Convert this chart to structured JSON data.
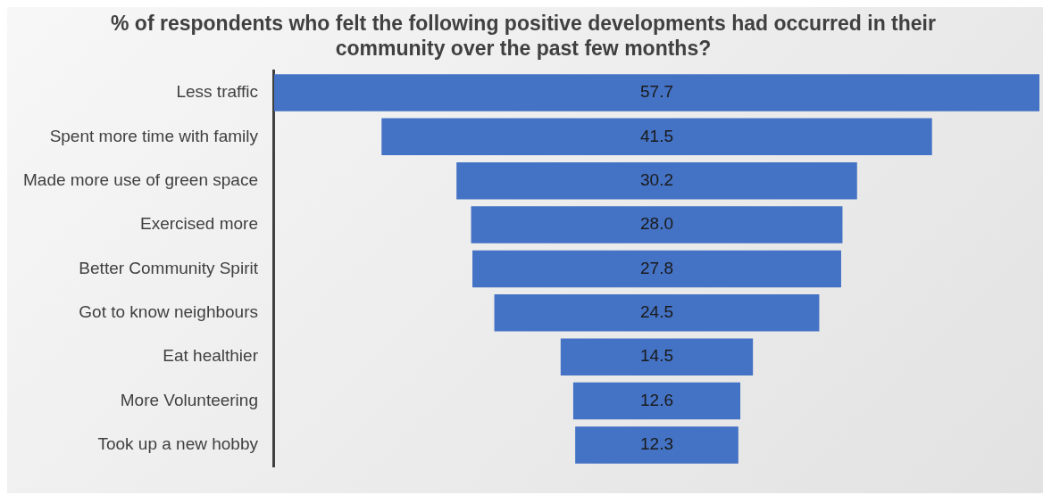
{
  "chart_data": {
    "type": "other",
    "title": "% of respondents who felt the following positive developments had occurred in their community over the past few months?",
    "categories": [
      "Less traffic",
      "Spent more time with family",
      "Made more use of green space",
      "Exercised more",
      "Better Community Spirit",
      "Got to know neighbours",
      "Eat healthier",
      "More Volunteering",
      "Took up a new hobby"
    ],
    "values": [
      57.7,
      41.5,
      30.2,
      28.0,
      27.8,
      24.5,
      14.5,
      12.6,
      12.3
    ],
    "color": "#4472c4",
    "value_labels": [
      "57.7",
      "41.5",
      "30.2",
      "28.0",
      "27.8",
      "24.5",
      "14.5",
      "12.6",
      "12.3"
    ]
  }
}
